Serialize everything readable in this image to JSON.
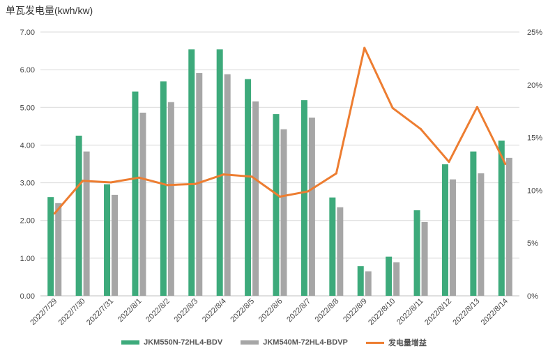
{
  "chart_data": {
    "type": "bar",
    "title": "单瓦发电量(kwh/kw)",
    "categories": [
      "2022/7/29",
      "2022/7/30",
      "2022/7/31",
      "2022/8/1",
      "2022/8/2",
      "2022/8/3",
      "2022/8/4",
      "2022/8/5",
      "2022/8/6",
      "2022/8/7",
      "2022/8/8",
      "2022/8/9",
      "2022/8/10",
      "2022/8/11",
      "2022/8/12",
      "2022/8/13",
      "2022/8/14"
    ],
    "ylim": [
      0,
      7
    ],
    "y_ticks": [
      "0.00",
      "1.00",
      "2.00",
      "3.00",
      "4.00",
      "5.00",
      "6.00",
      "7.00"
    ],
    "y2lim": [
      0,
      25
    ],
    "y2_ticks": [
      "0%",
      "5%",
      "10%",
      "15%",
      "20%",
      "25%"
    ],
    "grid": true,
    "legend_position": "bottom",
    "series": [
      {
        "name": "JKM550N-72HL4-BDV",
        "type": "bar",
        "axis": "left",
        "color": "#3daa7b",
        "values": [
          2.62,
          4.25,
          2.96,
          5.42,
          5.69,
          6.54,
          6.54,
          5.75,
          4.82,
          5.19,
          2.61,
          0.79,
          1.04,
          2.27,
          3.49,
          3.83,
          4.12
        ]
      },
      {
        "name": "JKM540M-72HL4-BDVP",
        "type": "bar",
        "axis": "left",
        "color": "#a6a6a6",
        "values": [
          2.46,
          3.83,
          2.68,
          4.86,
          5.14,
          5.91,
          5.88,
          5.16,
          4.42,
          4.73,
          2.35,
          0.65,
          0.89,
          1.96,
          3.09,
          3.25,
          3.66
        ]
      },
      {
        "name": "发电量增益",
        "type": "line",
        "axis": "right",
        "color": "#ed7d31",
        "values": [
          7.8,
          10.9,
          10.75,
          11.2,
          10.5,
          10.6,
          11.5,
          11.3,
          9.4,
          9.9,
          11.6,
          23.5,
          17.8,
          15.8,
          12.7,
          17.9,
          12.5
        ]
      }
    ]
  }
}
